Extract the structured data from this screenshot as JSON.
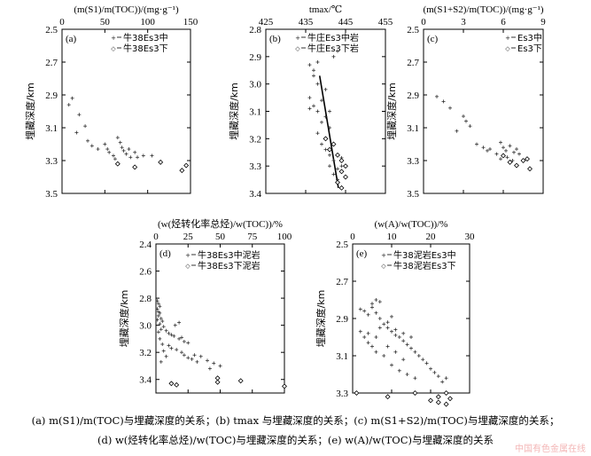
{
  "figure": {
    "caption_line1": "(a) m(S1)/m(TOC)与埋藏深度的关系；(b) tmax 与埋藏深度的关系；(c) m(S1+S2)/m(TOC)与埋藏深度的关系；",
    "caption_line2": "(d) w(烃转化率总烃)/w(TOC)与埋藏深度的关系；(e) w(A)/w(TOC)与埋藏深度的关系",
    "watermark": "中国有色金属在线"
  },
  "chart_data": [
    {
      "id": "a",
      "type": "scatter",
      "panel_label": "(a)",
      "title": "(m(S1)/m(TOC))/(mg·g⁻¹)",
      "ylabel": "埋藏深度/km",
      "xlim": [
        0,
        150
      ],
      "ylim": [
        2.5,
        3.5
      ],
      "y_inverted": true,
      "xticks": [
        0,
        50,
        100,
        150
      ],
      "yticks": [
        2.5,
        2.7,
        2.9,
        3.1,
        3.3,
        3.5
      ],
      "series": [
        {
          "name": "牛38Es3中",
          "marker": "+",
          "points": [
            [
              8,
              2.96
            ],
            [
              12,
              2.92
            ],
            [
              20,
              3.02
            ],
            [
              27,
              3.09
            ],
            [
              17,
              3.13
            ],
            [
              30,
              3.18
            ],
            [
              35,
              3.21
            ],
            [
              42,
              3.23
            ],
            [
              50,
              3.2
            ],
            [
              53,
              3.23
            ],
            [
              55,
              3.25
            ],
            [
              60,
              3.27
            ],
            [
              62,
              3.29
            ],
            [
              65,
              3.16
            ],
            [
              68,
              3.19
            ],
            [
              70,
              3.22
            ],
            [
              72,
              3.24
            ],
            [
              75,
              3.26
            ],
            [
              78,
              3.23
            ],
            [
              80,
              3.28
            ],
            [
              85,
              3.25
            ],
            [
              88,
              3.28
            ],
            [
              95,
              3.27
            ],
            [
              105,
              3.27
            ]
          ]
        },
        {
          "name": "牛38Es3下",
          "marker": "◇",
          "points": [
            [
              65,
              3.32
            ],
            [
              85,
              3.34
            ],
            [
              115,
              3.31
            ],
            [
              140,
              3.36
            ],
            [
              145,
              3.33
            ]
          ]
        }
      ]
    },
    {
      "id": "b",
      "type": "scatter",
      "panel_label": "(b)",
      "title": "tmax/℃",
      "ylabel": "埋藏深度/km",
      "xlim": [
        425,
        455
      ],
      "ylim": [
        2.8,
        3.4
      ],
      "y_inverted": true,
      "xticks": [
        425,
        435,
        445,
        455
      ],
      "yticks": [
        2.8,
        2.9,
        3.0,
        3.1,
        3.2,
        3.3,
        3.4
      ],
      "trendline": [
        [
          438.5,
          2.97
        ],
        [
          443.2,
          3.38
        ]
      ],
      "series": [
        {
          "name": "牛庄Es3中岩",
          "marker": "+",
          "points": [
            [
              436,
              2.93
            ],
            [
              437,
              2.95
            ],
            [
              438,
              2.92
            ],
            [
              437,
              2.97
            ],
            [
              438,
              3.0
            ],
            [
              440,
              3.02
            ],
            [
              436,
              3.05
            ],
            [
              439,
              3.06
            ],
            [
              437,
              3.08
            ],
            [
              438,
              3.1
            ],
            [
              440,
              3.12
            ],
            [
              439,
              3.14
            ],
            [
              441,
              3.16
            ],
            [
              438,
              3.18
            ],
            [
              439,
              3.22
            ],
            [
              440,
              3.24
            ],
            [
              441,
              3.26
            ],
            [
              442,
              3.28
            ],
            [
              441,
              3.3
            ],
            [
              442,
              3.33
            ],
            [
              443,
              3.31
            ],
            [
              443,
              3.35
            ],
            [
              444,
              3.3
            ],
            [
              442,
              2.9
            ],
            [
              441,
              3.1
            ],
            [
              440,
              3.2
            ],
            [
              444,
              3.27
            ],
            [
              436,
              3.09
            ],
            [
              443,
              2.88
            ]
          ]
        },
        {
          "name": "牛庄Es3下岩",
          "marker": "◇",
          "points": [
            [
              440,
              3.2
            ],
            [
              442,
              3.22
            ],
            [
              441,
              3.24
            ],
            [
              443,
              3.26
            ],
            [
              444,
              3.28
            ],
            [
              445,
              3.3
            ],
            [
              444,
              3.32
            ],
            [
              445,
              3.34
            ],
            [
              443,
              3.36
            ],
            [
              444,
              3.38
            ]
          ]
        }
      ]
    },
    {
      "id": "c",
      "type": "scatter",
      "panel_label": "(c)",
      "title": "(m(S1+S2)/m(TOC))/(mg·g⁻¹)",
      "ylabel": "埋藏深度/km",
      "xlim": [
        0,
        9
      ],
      "ylim": [
        2.5,
        3.5
      ],
      "y_inverted": true,
      "xticks": [
        0,
        3,
        6,
        9
      ],
      "yticks": [
        2.5,
        2.7,
        2.9,
        3.1,
        3.3,
        3.5
      ],
      "series": [
        {
          "name": "Es3中",
          "marker": "+",
          "points": [
            [
              1.0,
              2.91
            ],
            [
              1.5,
              2.94
            ],
            [
              2.0,
              2.98
            ],
            [
              3.0,
              3.03
            ],
            [
              3.2,
              3.06
            ],
            [
              3.5,
              3.09
            ],
            [
              2.5,
              3.12
            ],
            [
              4.0,
              3.2
            ],
            [
              4.5,
              3.22
            ],
            [
              4.8,
              3.24
            ],
            [
              5.0,
              3.23
            ],
            [
              5.5,
              3.26
            ],
            [
              5.8,
              3.19
            ],
            [
              6.0,
              3.22
            ],
            [
              6.2,
              3.24
            ],
            [
              6.5,
              3.21
            ],
            [
              6.0,
              3.27
            ],
            [
              5.8,
              3.29
            ],
            [
              6.3,
              3.28
            ],
            [
              7.0,
              3.23
            ],
            [
              7.2,
              3.26
            ],
            [
              6.7,
              3.3
            ],
            [
              6.8,
              3.25
            ]
          ]
        },
        {
          "name": "Es3下",
          "marker": "◇",
          "points": [
            [
              6.0,
              3.27
            ],
            [
              6.5,
              3.31
            ],
            [
              7.0,
              3.33
            ],
            [
              7.5,
              3.3
            ],
            [
              8.0,
              3.35
            ],
            [
              7.8,
              3.29
            ]
          ]
        }
      ]
    },
    {
      "id": "d",
      "type": "scatter",
      "panel_label": "(d)",
      "title": "(w(烃转化率总烃)/w(TOC))/%",
      "ylabel": "埋藏深度/km",
      "xlim": [
        0,
        100
      ],
      "ylim": [
        2.4,
        3.5
      ],
      "y_inverted": true,
      "xticks": [
        0,
        25,
        50,
        75,
        100
      ],
      "yticks": [
        2.4,
        2.6,
        2.8,
        3.0,
        3.2,
        3.4
      ],
      "series": [
        {
          "name": "牛38Es3中泥岩",
          "marker": "+",
          "points": [
            [
              1,
              2.82
            ],
            [
              2,
              2.84
            ],
            [
              3,
              2.86
            ],
            [
              1,
              2.88
            ],
            [
              2,
              2.9
            ],
            [
              3,
              2.91
            ],
            [
              2,
              2.93
            ],
            [
              4,
              2.95
            ],
            [
              5,
              2.97
            ],
            [
              3,
              2.99
            ],
            [
              6,
              3.01
            ],
            [
              4,
              3.03
            ],
            [
              8,
              3.04
            ],
            [
              10,
              3.06
            ],
            [
              12,
              3.07
            ],
            [
              14,
              3.08
            ],
            [
              18,
              3.1
            ],
            [
              20,
              3.09
            ],
            [
              22,
              3.12
            ],
            [
              25,
              3.13
            ],
            [
              10,
              3.15
            ],
            [
              12,
              3.17
            ],
            [
              16,
              3.18
            ],
            [
              20,
              3.2
            ],
            [
              22,
              3.22
            ],
            [
              25,
              3.24
            ],
            [
              28,
              3.25
            ],
            [
              30,
              3.22
            ],
            [
              32,
              3.27
            ],
            [
              35,
              3.23
            ],
            [
              40,
              3.26
            ],
            [
              45,
              3.28
            ],
            [
              50,
              3.3
            ],
            [
              42,
              3.32
            ],
            [
              2,
              3.05
            ],
            [
              3,
              3.1
            ],
            [
              5,
              3.14
            ],
            [
              6,
              3.19
            ],
            [
              8,
              3.23
            ],
            [
              4,
              3.27
            ],
            [
              15,
              3.0
            ],
            [
              18,
              2.98
            ],
            [
              1,
              2.96
            ]
          ]
        },
        {
          "name": "牛38Es3下泥岩",
          "marker": "◇",
          "points": [
            [
              12,
              3.43
            ],
            [
              16,
              3.44
            ],
            [
              48,
              3.39
            ],
            [
              48,
              3.42
            ],
            [
              66,
              3.41
            ],
            [
              100,
              3.45
            ]
          ]
        }
      ]
    },
    {
      "id": "e",
      "type": "scatter",
      "panel_label": "(e)",
      "title": "(w(A)/w(TOC))/%",
      "ylabel": "埋藏深度/km",
      "xlim": [
        0,
        30
      ],
      "ylim": [
        2.5,
        3.3
      ],
      "y_inverted": true,
      "xticks": [
        0,
        10,
        20,
        30
      ],
      "yticks": [
        2.5,
        2.7,
        2.9,
        3.1,
        3.3
      ],
      "series": [
        {
          "name": "牛38泥岩Es3中",
          "marker": "+",
          "points": [
            [
              2,
              2.85
            ],
            [
              3,
              2.86
            ],
            [
              4,
              2.88
            ],
            [
              5,
              2.82
            ],
            [
              6,
              2.8
            ],
            [
              7,
              2.81
            ],
            [
              5,
              2.84
            ],
            [
              6,
              2.87
            ],
            [
              7,
              2.9
            ],
            [
              8,
              2.93
            ],
            [
              9,
              2.95
            ],
            [
              10,
              2.97
            ],
            [
              11,
              2.99
            ],
            [
              12,
              3.0
            ],
            [
              13,
              3.02
            ],
            [
              14,
              3.04
            ],
            [
              15,
              3.06
            ],
            [
              16,
              3.08
            ],
            [
              17,
              3.1
            ],
            [
              18,
              3.12
            ],
            [
              19,
              3.14
            ],
            [
              20,
              3.17
            ],
            [
              21,
              3.19
            ],
            [
              22,
              3.21
            ],
            [
              23,
              3.24
            ],
            [
              24,
              3.22
            ],
            [
              3,
              3.0
            ],
            [
              4,
              3.03
            ],
            [
              5,
              3.05
            ],
            [
              6,
              3.08
            ],
            [
              8,
              3.1
            ],
            [
              10,
              3.15
            ],
            [
              12,
              3.18
            ],
            [
              14,
              3.2
            ],
            [
              16,
              3.22
            ],
            [
              9,
              2.92
            ],
            [
              11,
              2.96
            ],
            [
              13,
              2.98
            ],
            [
              15,
              3.0
            ],
            [
              7,
              2.95
            ],
            [
              9,
              3.05
            ],
            [
              11,
              3.08
            ],
            [
              13,
              3.12
            ],
            [
              2,
              2.97
            ],
            [
              4,
              2.98
            ],
            [
              6,
              3.0
            ],
            [
              10,
              2.89
            ]
          ]
        },
        {
          "name": "牛38泥岩Es3下",
          "marker": "◇",
          "points": [
            [
              1,
              3.3
            ],
            [
              9,
              3.32
            ],
            [
              16,
              3.3
            ],
            [
              20,
              3.34
            ],
            [
              22,
              3.32
            ],
            [
              24,
              3.3
            ],
            [
              24,
              3.36
            ],
            [
              25,
              3.33
            ],
            [
              22,
              3.35
            ]
          ]
        }
      ]
    }
  ]
}
